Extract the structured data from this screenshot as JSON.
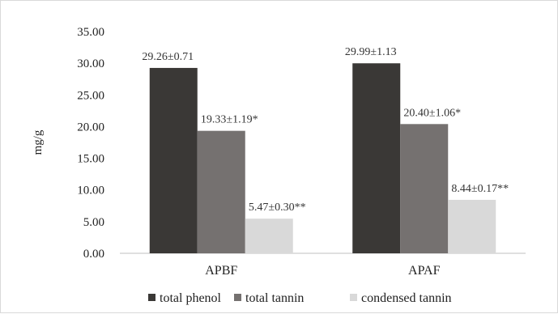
{
  "chart_data": {
    "type": "bar",
    "categories": [
      "APBF",
      "APAF"
    ],
    "series": [
      {
        "name": "total phenol",
        "values": [
          29.26,
          29.99
        ],
        "labels": [
          "29.26±0.71",
          "29.99±1.13"
        ],
        "color": "#3a3836"
      },
      {
        "name": "total tannin",
        "values": [
          19.33,
          20.4
        ],
        "labels": [
          "19.33±1.19*",
          "20.40±1.06*"
        ],
        "color": "#757170"
      },
      {
        "name": "condensed tannin",
        "values": [
          5.47,
          8.44
        ],
        "labels": [
          "5.47±0.30**",
          "8.44±0.17**"
        ],
        "color": "#d9d9d9"
      }
    ],
    "ylabel": "mg/g",
    "xlabel": "",
    "title": "",
    "ylim": [
      0,
      35
    ],
    "yticks": [
      "0.00",
      "5.00",
      "10.00",
      "15.00",
      "20.00",
      "25.00",
      "30.00",
      "35.00"
    ],
    "grid": false,
    "legend_position": "bottom"
  }
}
